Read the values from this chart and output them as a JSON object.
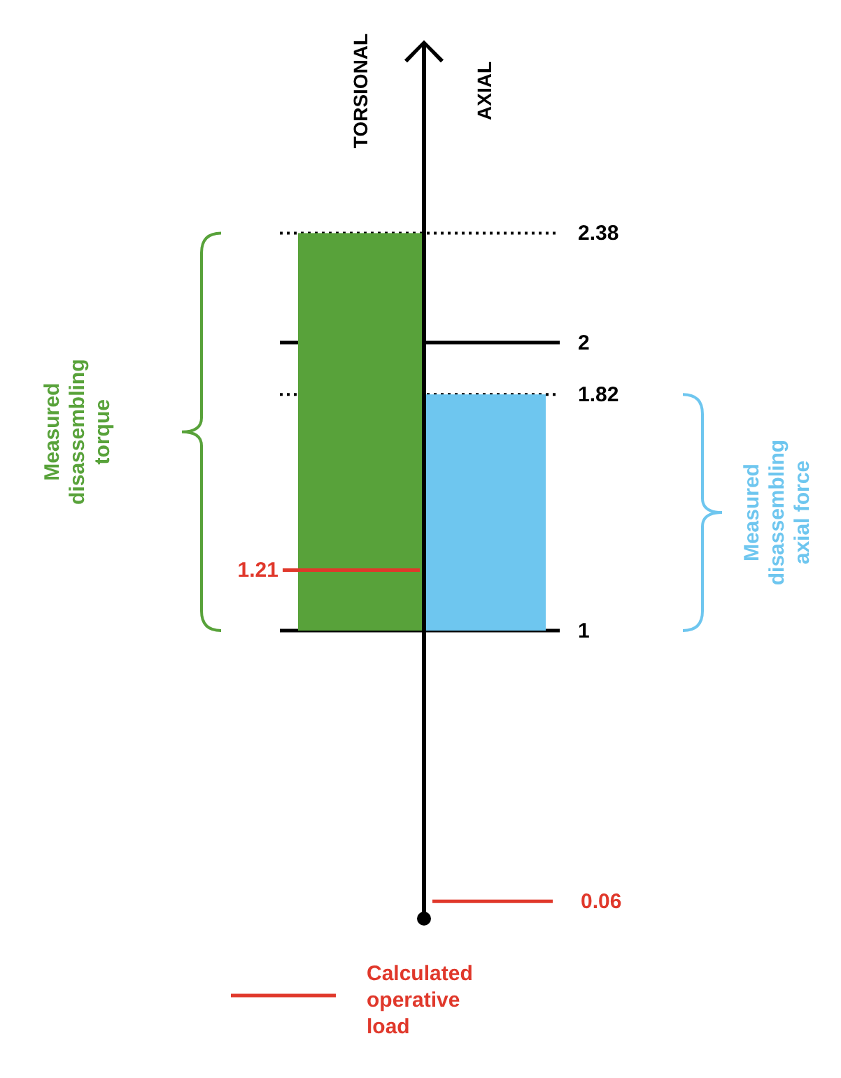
{
  "chart_data": {
    "type": "bar",
    "categories": [
      "TORSIONAL",
      "AXIAL"
    ],
    "values": [
      1.38,
      0.82
    ],
    "base": [
      1,
      1
    ],
    "colors": [
      "#58a23a",
      "#6ec6ef"
    ],
    "ylim": [
      0,
      2.38
    ],
    "yticks": [
      1,
      1.82,
      2,
      2.38
    ],
    "ref_lines": [
      {
        "axis": "y",
        "value": 2.38,
        "line_style": "dotted"
      },
      {
        "axis": "y",
        "value": 2,
        "line_style": "solid"
      },
      {
        "axis": "y",
        "value": 1.82,
        "line_style": "dotted"
      },
      {
        "axis": "y",
        "value": 1,
        "line_style": "solid"
      },
      {
        "axis": "y",
        "value": 1.21,
        "label": "1.21",
        "color": "#e0382b"
      },
      {
        "axis": "y",
        "value": 0.06,
        "label": "0.06",
        "color": "#e0382b"
      }
    ],
    "annotations": [
      "Measured disassembling torque",
      "Measured disassembling axial force",
      "Calculated operative load"
    ]
  }
}
